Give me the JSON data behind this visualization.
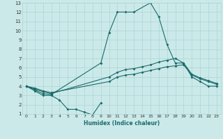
{
  "xlabel": "Humidex (Indice chaleur)",
  "xlim": [
    -0.5,
    23.5
  ],
  "ylim": [
    1,
    13
  ],
  "xticks": [
    0,
    1,
    2,
    3,
    4,
    5,
    6,
    7,
    8,
    9,
    10,
    11,
    12,
    13,
    14,
    15,
    16,
    17,
    18,
    19,
    20,
    21,
    22,
    23
  ],
  "yticks": [
    1,
    2,
    3,
    4,
    5,
    6,
    7,
    8,
    9,
    10,
    11,
    12,
    13
  ],
  "background_color": "#cce9e9",
  "line_color": "#1a6b6b",
  "grid_color": "#aad4d4",
  "line1_x": [
    0,
    1,
    2,
    3,
    4,
    5,
    6,
    7,
    8,
    9
  ],
  "line1_y": [
    4.0,
    3.5,
    3.0,
    3.0,
    2.5,
    1.5,
    1.5,
    1.2,
    0.9,
    2.2
  ],
  "line2_x": [
    0,
    1,
    2,
    3,
    10,
    11,
    12,
    13,
    14,
    15,
    16,
    17,
    18,
    19,
    20,
    21,
    22,
    23
  ],
  "line2_y": [
    4.0,
    3.8,
    3.5,
    3.3,
    4.5,
    5.0,
    5.2,
    5.3,
    5.5,
    5.7,
    5.9,
    6.1,
    6.2,
    6.3,
    5.2,
    4.8,
    4.5,
    4.2
  ],
  "line3_x": [
    0,
    1,
    2,
    3,
    10,
    11,
    12,
    13,
    14,
    15,
    16,
    17,
    18,
    19,
    20,
    21,
    22,
    23
  ],
  "line3_y": [
    4.0,
    3.7,
    3.4,
    3.2,
    5.0,
    5.5,
    5.8,
    5.9,
    6.1,
    6.3,
    6.6,
    6.8,
    7.0,
    6.5,
    5.3,
    4.9,
    4.6,
    4.3
  ],
  "line4_x": [
    0,
    1,
    2,
    3,
    9,
    10,
    11,
    12,
    13,
    15,
    16,
    17,
    18,
    19,
    20,
    21,
    22,
    23
  ],
  "line4_y": [
    4.0,
    3.6,
    3.2,
    3.1,
    6.5,
    9.8,
    12.0,
    12.0,
    12.0,
    13.0,
    11.5,
    8.5,
    6.5,
    6.5,
    5.0,
    4.5,
    4.0,
    4.0
  ]
}
